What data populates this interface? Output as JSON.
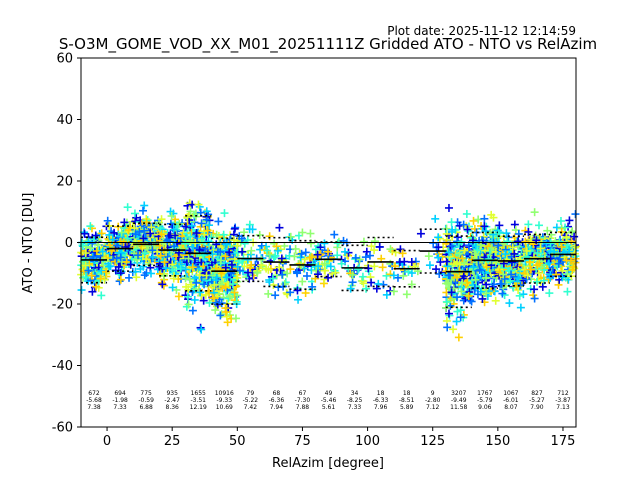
{
  "chart_data": {
    "type": "scatter",
    "title": "S-O3M_GOME_VOD_XX_M01_20251111Z Gridded ATO - NTO vs RelAzim",
    "plot_date": "Plot date: 2025-11-12 12:14:59",
    "xlabel": "RelAzim [degree]",
    "ylabel": "ATO - NTO [DU]",
    "xlim": [
      -10,
      180
    ],
    "ylim": [
      -60,
      60
    ],
    "xticks": [
      0,
      25,
      50,
      75,
      100,
      125,
      150,
      175
    ],
    "yticks": [
      -60,
      -40,
      -20,
      0,
      20,
      40,
      60
    ],
    "zero_line": 0,
    "bins": [
      {
        "x": -5,
        "count": "672",
        "mean": "-5.68",
        "std": "7.38"
      },
      {
        "x": 5,
        "count": "694",
        "mean": "-1.98",
        "std": "7.33"
      },
      {
        "x": 15,
        "count": "775",
        "mean": "-0.59",
        "std": "6.88"
      },
      {
        "x": 25,
        "count": "935",
        "mean": "-2.47",
        "std": "8.36"
      },
      {
        "x": 35,
        "count": "1655",
        "mean": "-3.51",
        "std": "12.19"
      },
      {
        "x": 45,
        "count": "10916",
        "mean": "-9.33",
        "std": "10.69"
      },
      {
        "x": 55,
        "count": "79",
        "mean": "-5.22",
        "std": "7.42"
      },
      {
        "x": 65,
        "count": "68",
        "mean": "-6.36",
        "std": "7.94"
      },
      {
        "x": 75,
        "count": "67",
        "mean": "-7.30",
        "std": "7.88"
      },
      {
        "x": 85,
        "count": "49",
        "mean": "-5.46",
        "std": "5.61"
      },
      {
        "x": 95,
        "count": "34",
        "mean": "-8.25",
        "std": "7.33"
      },
      {
        "x": 105,
        "count": "18",
        "mean": "-6.33",
        "std": "7.96"
      },
      {
        "x": 115,
        "count": "18",
        "mean": "-8.51",
        "std": "5.89"
      },
      {
        "x": 125,
        "count": "9",
        "mean": "-2.80",
        "std": "7.12"
      },
      {
        "x": 135,
        "count": "3207",
        "mean": "-9.49",
        "std": "11.58"
      },
      {
        "x": 145,
        "count": "1767",
        "mean": "-5.79",
        "std": "9.06"
      },
      {
        "x": 155,
        "count": "1067",
        "mean": "-6.01",
        "std": "8.07"
      },
      {
        "x": 165,
        "count": "827",
        "mean": "-5.27",
        "std": "7.90"
      },
      {
        "x": 175,
        "count": "712",
        "mean": "-3.87",
        "std": "7.13"
      }
    ],
    "series_colors": [
      "#0000dd",
      "#0070ff",
      "#00d0ff",
      "#30ffd0",
      "#90ff70",
      "#e0ff30",
      "#ffd000"
    ]
  }
}
